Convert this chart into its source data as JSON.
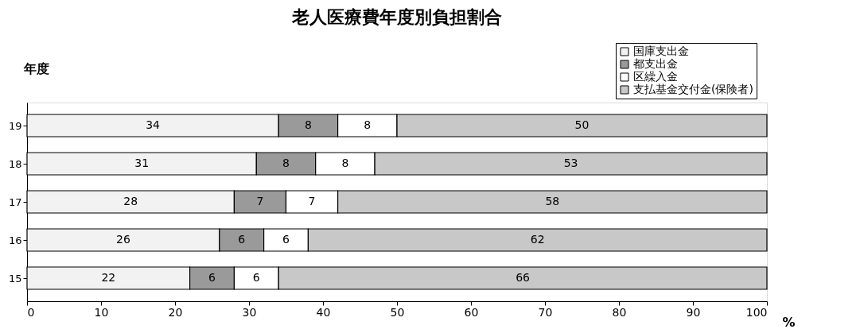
{
  "chart_data": {
    "type": "bar",
    "orientation": "horizontal",
    "stacked": true,
    "title": "老人医療費年度別負担割合",
    "ylabel": "年度",
    "xlabel": "%",
    "categories": [
      "19",
      "18",
      "17",
      "16",
      "15"
    ],
    "series": [
      {
        "name": "国庫支出金",
        "color": "#f2f2f2",
        "values": [
          34,
          31,
          28,
          26,
          22
        ]
      },
      {
        "name": "都支出金",
        "color": "#9a9a9a",
        "values": [
          8,
          8,
          7,
          6,
          6
        ]
      },
      {
        "name": "区繰入金",
        "color": "#ffffff",
        "values": [
          8,
          8,
          7,
          6,
          6
        ]
      },
      {
        "name": "支払基金交付金(保険者)",
        "color": "#c8c8c8",
        "values": [
          50,
          53,
          58,
          62,
          66
        ]
      }
    ],
    "xlim": [
      0,
      100
    ],
    "xticks": [
      0,
      10,
      20,
      30,
      40,
      50,
      60,
      70,
      80,
      90,
      100
    ],
    "data_labels": true,
    "legend": "top right",
    "grid": false
  }
}
